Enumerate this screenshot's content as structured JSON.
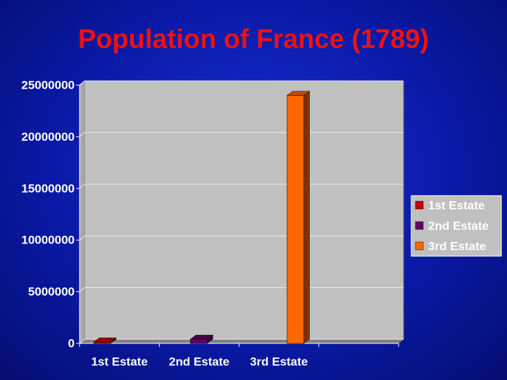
{
  "chart_data": {
    "type": "bar3d",
    "title": "Population of France (1789)",
    "categories": [
      "1st Estate",
      "2nd Estate",
      "3rd Estate",
      null
    ],
    "series": [
      {
        "name": "1st Estate",
        "color": "#cc0000",
        "values": [
          130000,
          null,
          null,
          null
        ]
      },
      {
        "name": "2nd Estate",
        "color": "#660066",
        "values": [
          null,
          400000,
          null,
          null
        ]
      },
      {
        "name": "3rd Estate",
        "color": "#ff6600",
        "values": [
          null,
          null,
          24000000,
          null
        ]
      }
    ],
    "ylim": [
      0,
      25000000
    ],
    "yticks": [
      0,
      5000000,
      10000000,
      15000000,
      20000000,
      25000000
    ],
    "grid": true,
    "legend": "right"
  }
}
